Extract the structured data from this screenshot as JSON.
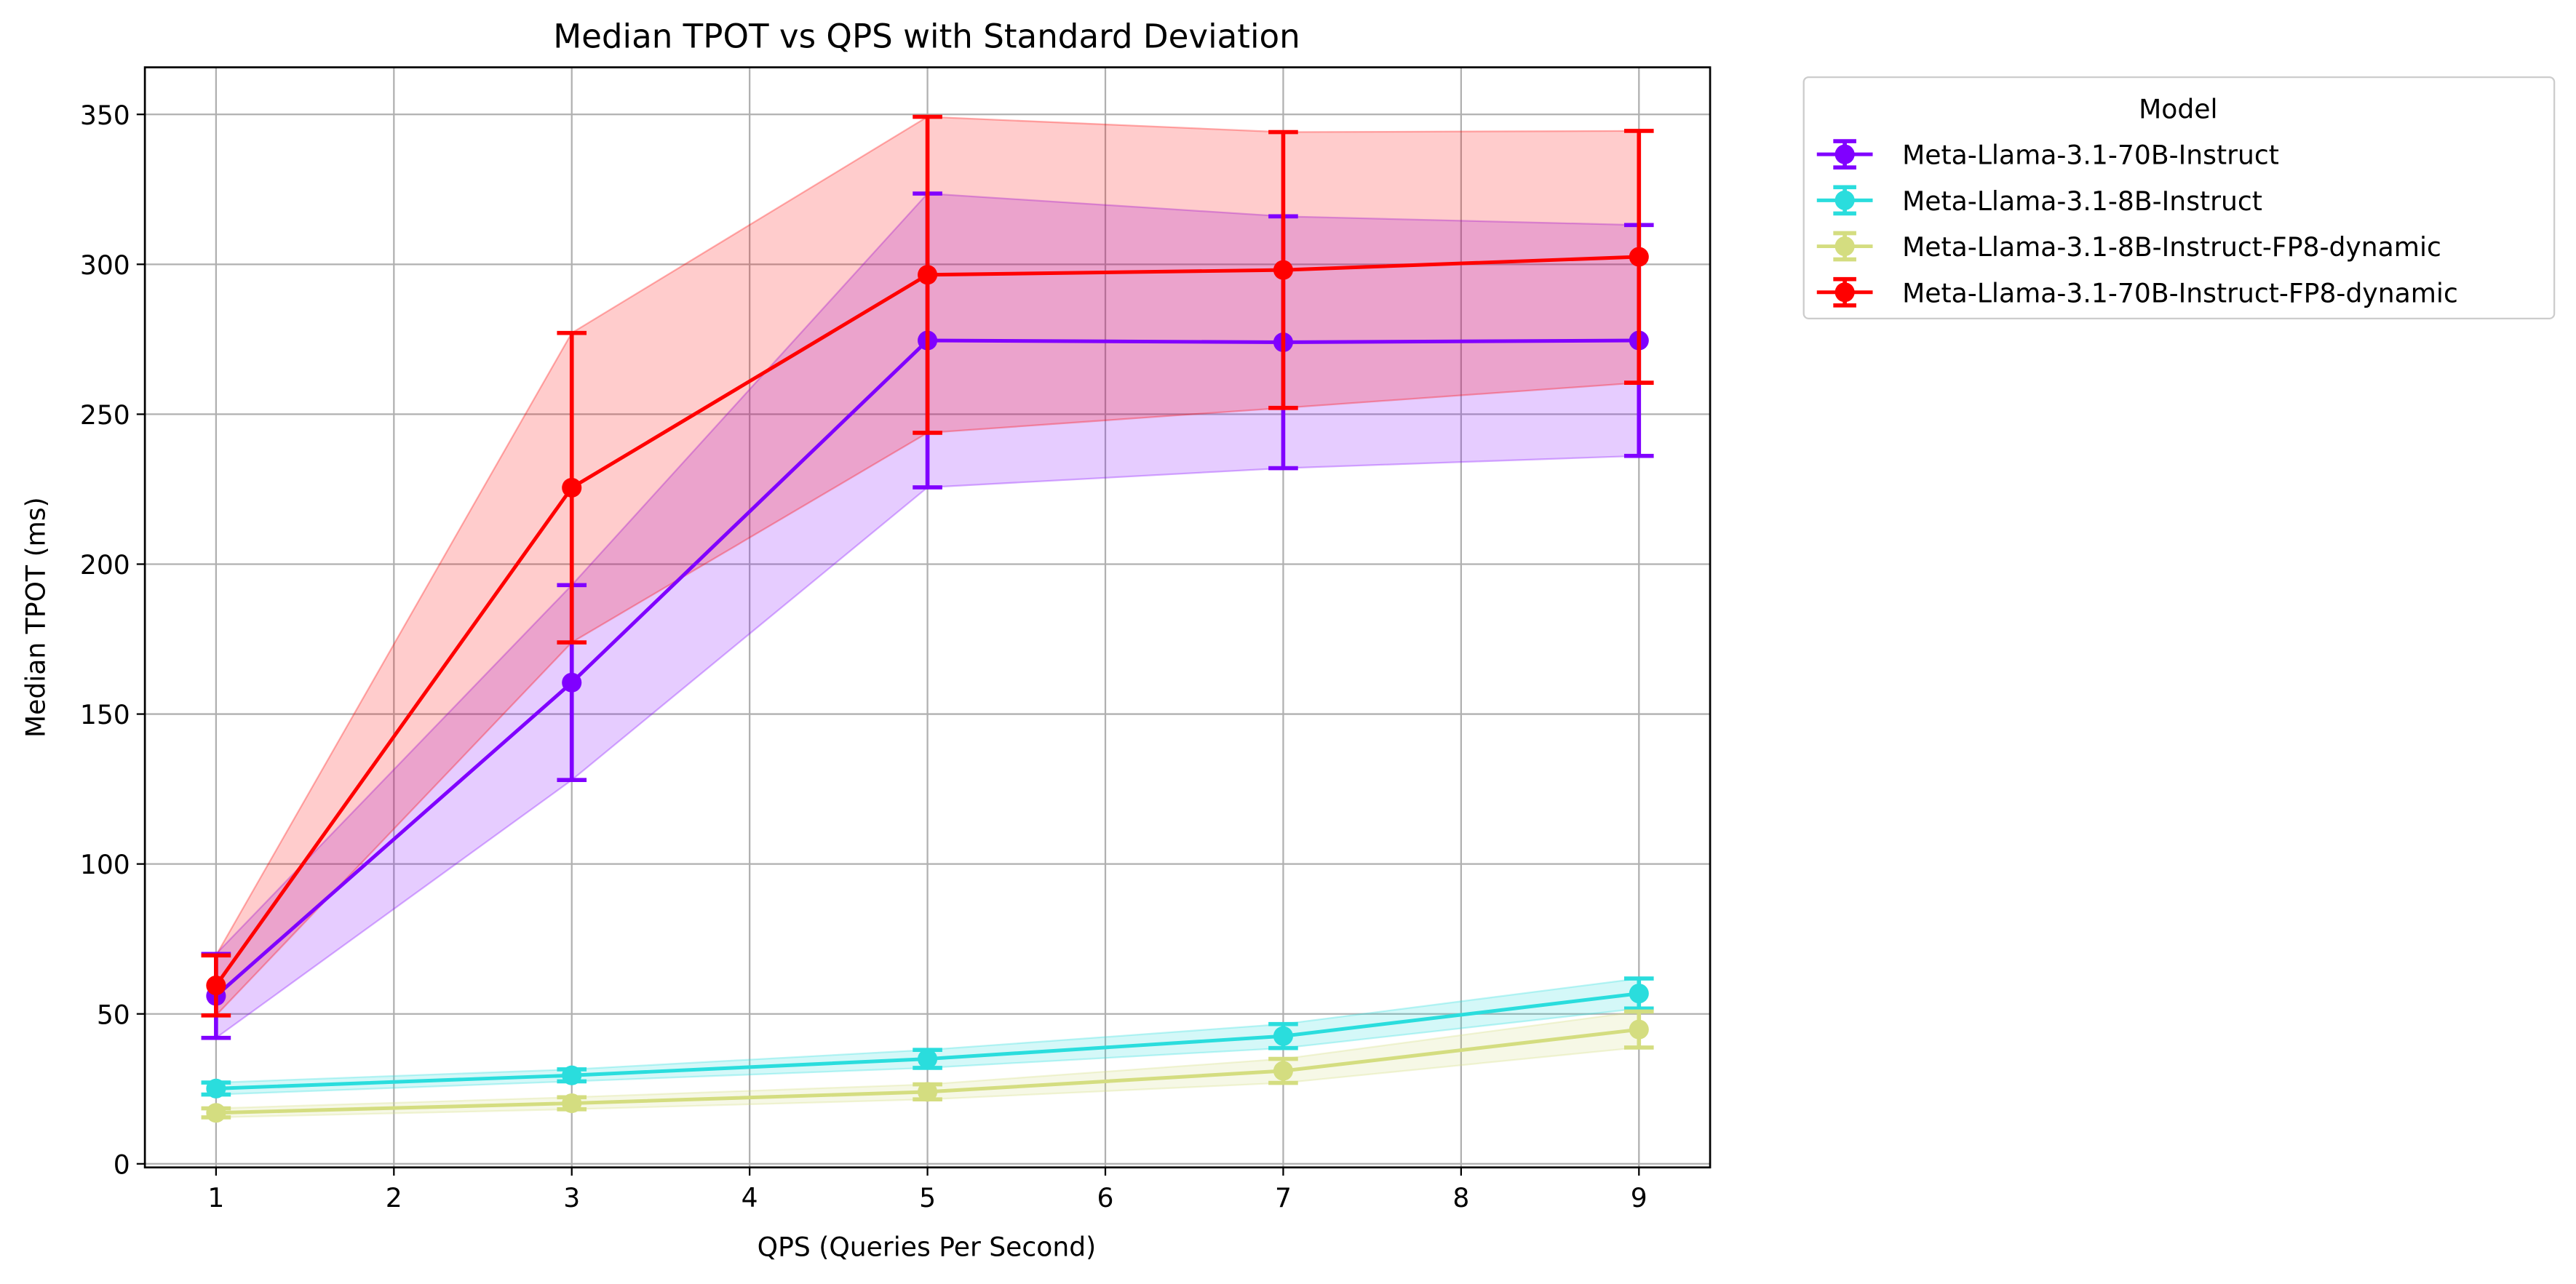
{
  "chart_data": {
    "type": "line",
    "title": "Median TPOT vs QPS with Standard Deviation",
    "x_label": "QPS (Queries Per Second)",
    "y_label": "Median TPOT (ms)",
    "legend_title": "Model",
    "legend_position": "outside-upper-right",
    "grid": true,
    "x": [
      1,
      3,
      5,
      7,
      9
    ],
    "xlim": [
      0.6,
      9.4
    ],
    "xticks": [
      1,
      2,
      3,
      4,
      5,
      6,
      7,
      8,
      9
    ],
    "ylim": [
      -1.2,
      365.7
    ],
    "yticks": [
      0,
      50,
      100,
      150,
      200,
      250,
      300,
      350
    ],
    "series": [
      {
        "name": "Meta-Llama-3.1-70B-Instruct",
        "color": "#8000ff",
        "values": [
          56,
          160.5,
          274.6,
          274,
          274.6
        ],
        "errors": [
          14,
          32.5,
          49,
          42,
          38.5
        ]
      },
      {
        "name": "Meta-Llama-3.1-8B-Instruct",
        "color": "#2adddd",
        "values": [
          25.1,
          29.5,
          35,
          42.6,
          56.8
        ],
        "errors": [
          2,
          2,
          3,
          4,
          5
        ]
      },
      {
        "name": "Meta-Llama-3.1-8B-Instruct-FP8-dynamic",
        "color": "#d4dd80",
        "values": [
          17,
          20.2,
          24,
          31,
          44.8
        ],
        "errors": [
          1.5,
          2,
          2.5,
          4,
          6
        ]
      },
      {
        "name": "Meta-Llama-3.1-70B-Instruct-FP8-dynamic",
        "color": "#ff0000",
        "values": [
          59.5,
          225.5,
          296.5,
          298.1,
          302.5
        ],
        "errors": [
          10,
          51.6,
          52.7,
          46,
          42
        ]
      }
    ]
  }
}
